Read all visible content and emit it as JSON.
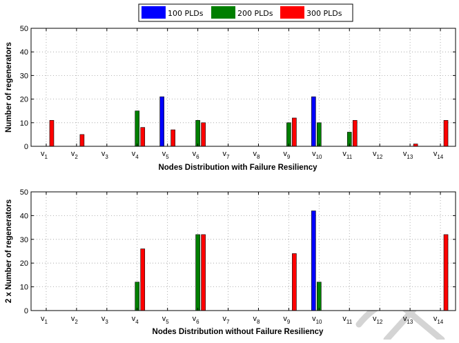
{
  "colors": {
    "100 PLDs": "#0000ff",
    "200 PLDs": "#007f00",
    "300 PLDs": "#ff0000"
  },
  "legend": [
    "100 PLDs",
    "200 PLDs",
    "300 PLDs"
  ],
  "chart_data": [
    {
      "type": "bar",
      "categories": [
        "v1",
        "v2",
        "v3",
        "v4",
        "v5",
        "v6",
        "v7",
        "v8",
        "v9",
        "v10",
        "v11",
        "v12",
        "v13",
        "v14"
      ],
      "category_labels": [
        {
          "base": "v",
          "sub": "1"
        },
        {
          "base": "v",
          "sub": "2"
        },
        {
          "base": "v",
          "sub": "3"
        },
        {
          "base": "v",
          "sub": "4"
        },
        {
          "base": "v",
          "sub": "5"
        },
        {
          "base": "v",
          "sub": "6"
        },
        {
          "base": "v",
          "sub": "7"
        },
        {
          "base": "v",
          "sub": "8"
        },
        {
          "base": "v",
          "sub": "9"
        },
        {
          "base": "v",
          "sub": "10"
        },
        {
          "base": "v",
          "sub": "11"
        },
        {
          "base": "v",
          "sub": "12"
        },
        {
          "base": "v",
          "sub": "13"
        },
        {
          "base": "v",
          "sub": "14"
        }
      ],
      "series": [
        {
          "name": "100 PLDs",
          "values": [
            0,
            0,
            0,
            0,
            21,
            0,
            0,
            0,
            0,
            21,
            0,
            0,
            0,
            0
          ]
        },
        {
          "name": "200 PLDs",
          "values": [
            0,
            0,
            0,
            15,
            0,
            11,
            0,
            0,
            10,
            10,
            6,
            0,
            0,
            0
          ]
        },
        {
          "name": "300 PLDs",
          "values": [
            11,
            5,
            0,
            8,
            7,
            10,
            0,
            0,
            12,
            0,
            11,
            0,
            1,
            11
          ]
        }
      ],
      "xlabel": "Nodes Distribution with Failure Resiliency",
      "ylabel": "Number of regenerators",
      "ylim": [
        0,
        50
      ],
      "yticks": [
        0,
        10,
        20,
        30,
        40,
        50
      ],
      "grid": true,
      "legend_position": "top-center"
    },
    {
      "type": "bar",
      "categories": [
        "v1",
        "v2",
        "v3",
        "v4",
        "v5",
        "v6",
        "v7",
        "v8",
        "v9",
        "v10",
        "v11",
        "v12",
        "v13",
        "v14"
      ],
      "category_labels": [
        {
          "base": "v",
          "sub": "1"
        },
        {
          "base": "v",
          "sub": "2"
        },
        {
          "base": "v",
          "sub": "3"
        },
        {
          "base": "v",
          "sub": "4"
        },
        {
          "base": "v",
          "sub": "5"
        },
        {
          "base": "v",
          "sub": "6"
        },
        {
          "base": "v",
          "sub": "7"
        },
        {
          "base": "v",
          "sub": "8"
        },
        {
          "base": "v",
          "sub": "9"
        },
        {
          "base": "v",
          "sub": "10"
        },
        {
          "base": "v",
          "sub": "11"
        },
        {
          "base": "v",
          "sub": "12"
        },
        {
          "base": "v",
          "sub": "13"
        },
        {
          "base": "v",
          "sub": "14"
        }
      ],
      "series": [
        {
          "name": "100 PLDs",
          "values": [
            0,
            0,
            0,
            0,
            0,
            0,
            0,
            0,
            0,
            42,
            0,
            0,
            0,
            0
          ]
        },
        {
          "name": "200 PLDs",
          "values": [
            0,
            0,
            0,
            12,
            0,
            32,
            0,
            0,
            0,
            12,
            0,
            0,
            0,
            0
          ]
        },
        {
          "name": "300 PLDs",
          "values": [
            0,
            0,
            0,
            26,
            0,
            32,
            0,
            0,
            24,
            0,
            0,
            0,
            0,
            32
          ]
        }
      ],
      "xlabel": "Nodes Distribution without Failure Resiliency",
      "ylabel": "2 x Number of regenerators",
      "ylim": [
        0,
        50
      ],
      "yticks": [
        0,
        10,
        20,
        30,
        40,
        50
      ],
      "grid": true
    }
  ]
}
